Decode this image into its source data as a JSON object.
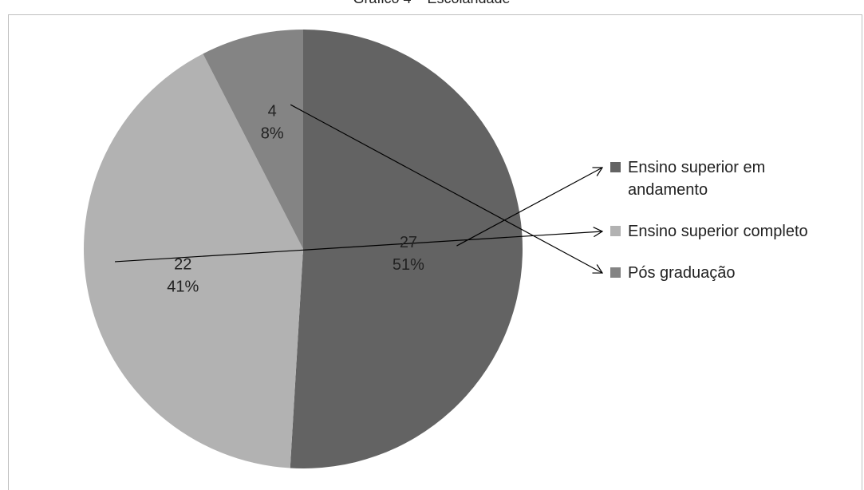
{
  "chart_data": {
    "type": "pie",
    "title": "Gráfico 4 – Escolaridade",
    "slices": [
      {
        "name": "Ensino superior em andamento",
        "legend_lines": [
          "Ensino superior em",
          "andamento"
        ],
        "value": 27,
        "percent": "51%",
        "color": "#636363"
      },
      {
        "name": "Ensino superior completo",
        "legend_lines": [
          "Ensino superior completo"
        ],
        "value": 22,
        "percent": "41%",
        "color": "#b2b2b2"
      },
      {
        "name": "Pós graduação",
        "legend_lines": [
          "Pós graduação"
        ],
        "value": 4,
        "percent": "8%",
        "color": "#848484"
      }
    ],
    "legend_position": "right",
    "grid": false
  }
}
